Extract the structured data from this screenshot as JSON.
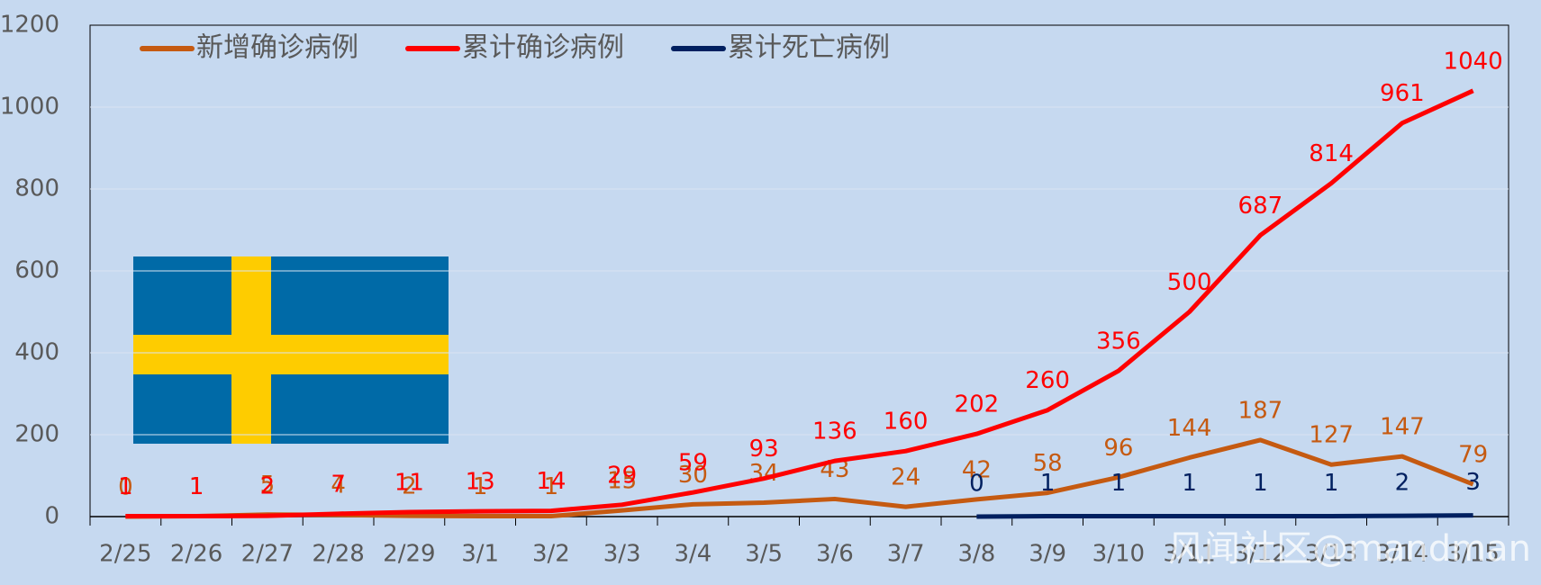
{
  "chart_data": {
    "type": "line",
    "categories": [
      "2/25",
      "2/26",
      "2/27",
      "2/28",
      "2/29",
      "3/1",
      "3/2",
      "3/3",
      "3/4",
      "3/5",
      "3/6",
      "3/7",
      "3/8",
      "3/9",
      "3/10",
      "3/11",
      "3/12",
      "3/13",
      "3/14",
      "3/15"
    ],
    "series": [
      {
        "name": "新增确诊病例",
        "color": "#c55a11",
        "values": [
          0,
          1,
          5,
          4,
          2,
          1,
          1,
          15,
          30,
          34,
          43,
          24,
          42,
          58,
          96,
          144,
          187,
          127,
          147,
          79
        ]
      },
      {
        "name": "累计确诊病例",
        "color": "#ff0000",
        "values": [
          1,
          1,
          2,
          7,
          11,
          13,
          14,
          29,
          59,
          93,
          136,
          160,
          202,
          260,
          356,
          500,
          687,
          814,
          961,
          1040
        ]
      },
      {
        "name": "累计死亡病例",
        "color": "#002060",
        "values": [
          null,
          null,
          null,
          null,
          null,
          null,
          null,
          null,
          null,
          null,
          null,
          null,
          0,
          1,
          1,
          1,
          1,
          1,
          2,
          3
        ]
      }
    ],
    "ylim": [
      0,
      1200
    ],
    "yticks": [
      0,
      200,
      400,
      600,
      800,
      1000,
      1200
    ],
    "grid": true,
    "legend": "top-left",
    "watermark": "风闻社区@mandman"
  }
}
